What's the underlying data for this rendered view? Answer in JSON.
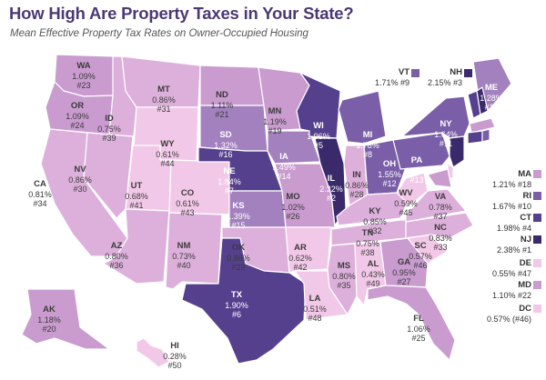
{
  "title": "How High Are Property Taxes in Your State?",
  "subtitle": "Mean Effective Property Tax Rates on Owner-Occupied Housing",
  "legend_colors": {
    "c1": "#f2c8e8",
    "c2": "#ddb0dc",
    "c3": "#c99bcf",
    "c4": "#a381bf",
    "c5": "#7a5ea8",
    "c6": "#55408d",
    "c7": "#3a2a6b"
  },
  "states": [
    {
      "id": "WA",
      "abbr": "WA",
      "rate": "1.09%",
      "rank": "#23",
      "shade": "c3"
    },
    {
      "id": "OR",
      "abbr": "OR",
      "rate": "1.09%",
      "rank": "#24",
      "shade": "c3"
    },
    {
      "id": "CA",
      "abbr": "CA",
      "rate": "0.81%",
      "rank": "#34",
      "shade": "c2"
    },
    {
      "id": "ID",
      "abbr": "ID",
      "rate": "0.75%",
      "rank": "#39",
      "shade": "c2"
    },
    {
      "id": "NV",
      "abbr": "NV",
      "rate": "0.86%",
      "rank": "#30",
      "shade": "c2"
    },
    {
      "id": "MT",
      "abbr": "MT",
      "rate": "0.86%",
      "rank": "#31",
      "shade": "c2"
    },
    {
      "id": "WY",
      "abbr": "WY",
      "rate": "0.61%",
      "rank": "#44",
      "shade": "c1"
    },
    {
      "id": "UT",
      "abbr": "UT",
      "rate": "0.68%",
      "rank": "#41",
      "shade": "c1"
    },
    {
      "id": "AZ",
      "abbr": "AZ",
      "rate": "0.80%",
      "rank": "#36",
      "shade": "c2"
    },
    {
      "id": "CO",
      "abbr": "CO",
      "rate": "0.61%",
      "rank": "#43",
      "shade": "c1"
    },
    {
      "id": "NM",
      "abbr": "NM",
      "rate": "0.73%",
      "rank": "#40",
      "shade": "c2"
    },
    {
      "id": "ND",
      "abbr": "ND",
      "rate": "1.11%",
      "rank": "#21",
      "shade": "c3"
    },
    {
      "id": "SD",
      "abbr": "SD",
      "rate": "1.32%",
      "rank": "#16",
      "shade": "c4"
    },
    {
      "id": "NE",
      "abbr": "NE",
      "rate": "1.84%",
      "rank": "#7",
      "shade": "c6"
    },
    {
      "id": "KS",
      "abbr": "KS",
      "rate": "1.39%",
      "rank": "#15",
      "shade": "c4"
    },
    {
      "id": "OK",
      "abbr": "OK",
      "rate": "0.86%",
      "rank": "#29",
      "shade": "c2"
    },
    {
      "id": "TX",
      "abbr": "TX",
      "rate": "1.90%",
      "rank": "#6",
      "shade": "c6"
    },
    {
      "id": "MN",
      "abbr": "MN",
      "rate": "1.19%",
      "rank": "#19",
      "shade": "c3"
    },
    {
      "id": "IA",
      "abbr": "IA",
      "rate": "1.49%",
      "rank": "#14",
      "shade": "c4"
    },
    {
      "id": "MO",
      "abbr": "MO",
      "rate": "1.02%",
      "rank": "#26",
      "shade": "c3"
    },
    {
      "id": "AR",
      "abbr": "AR",
      "rate": "0.62%",
      "rank": "#42",
      "shade": "c1"
    },
    {
      "id": "LA",
      "abbr": "LA",
      "rate": "0.51%",
      "rank": "#48",
      "shade": "c1"
    },
    {
      "id": "WI",
      "abbr": "WI",
      "rate": "1.96%",
      "rank": "#5",
      "shade": "c6"
    },
    {
      "id": "IL",
      "abbr": "IL",
      "rate": "2.32%",
      "rank": "#2",
      "shade": "c7"
    },
    {
      "id": "MI",
      "abbr": "MI",
      "rate": "1.78%",
      "rank": "#8",
      "shade": "c5"
    },
    {
      "id": "IN",
      "abbr": "IN",
      "rate": "0.86%",
      "rank": "#28",
      "shade": "c2"
    },
    {
      "id": "OH",
      "abbr": "OH",
      "rate": "1.55%",
      "rank": "#12",
      "shade": "c5"
    },
    {
      "id": "KY",
      "abbr": "KY",
      "rate": "0.85%",
      "rank": "#32",
      "shade": "c2"
    },
    {
      "id": "TN",
      "abbr": "TN",
      "rate": "0.75%",
      "rank": "#38",
      "shade": "c2"
    },
    {
      "id": "MS",
      "abbr": "MS",
      "rate": "0.80%",
      "rank": "#35",
      "shade": "c2"
    },
    {
      "id": "AL",
      "abbr": "AL",
      "rate": "0.43%",
      "rank": "#49",
      "shade": "c1"
    },
    {
      "id": "GA",
      "abbr": "GA",
      "rate": "0.95%",
      "rank": "#27",
      "shade": "c3"
    },
    {
      "id": "FL",
      "abbr": "FL",
      "rate": "1.06%",
      "rank": "#25",
      "shade": "c3"
    },
    {
      "id": "SC",
      "abbr": "SC",
      "rate": "0.57%",
      "rank": "#46",
      "shade": "c1"
    },
    {
      "id": "NC",
      "abbr": "NC",
      "rate": "0.83%",
      "rank": "#33",
      "shade": "c2"
    },
    {
      "id": "VA",
      "abbr": "VA",
      "rate": "0.78%",
      "rank": "#37",
      "shade": "c2"
    },
    {
      "id": "WV",
      "abbr": "WV",
      "rate": "0.59%",
      "rank": "#45",
      "shade": "c1"
    },
    {
      "id": "PA",
      "abbr": "PA",
      "rate": "1.54%",
      "rank": "#13",
      "shade": "c5"
    },
    {
      "id": "NY",
      "abbr": "NY",
      "rate": "1.64%",
      "rank": "#11",
      "shade": "c5"
    },
    {
      "id": "ME",
      "abbr": "ME",
      "rate": "1.28%",
      "rank": "#17",
      "shade": "c4"
    },
    {
      "id": "AK",
      "abbr": "AK",
      "rate": "1.18%",
      "rank": "#20",
      "shade": "c3"
    },
    {
      "id": "HI",
      "abbr": "HI",
      "rate": "0.28%",
      "rank": "#50",
      "shade": "c1"
    }
  ],
  "northeast_callouts": [
    {
      "abbr": "VT",
      "text": "1.71% #9",
      "shade": "c5"
    },
    {
      "abbr": "NH",
      "text": "2.15% #3",
      "shade": "c7"
    }
  ],
  "side_callouts": [
    {
      "abbr": "MA",
      "text": "1.21% #18",
      "shade": "c3"
    },
    {
      "abbr": "RI",
      "text": "1.67% #10",
      "shade": "c5"
    },
    {
      "abbr": "CT",
      "text": "1.98% #4",
      "shade": "c6"
    },
    {
      "abbr": "NJ",
      "text": "2.38% #1",
      "shade": "c7"
    },
    {
      "abbr": "DE",
      "text": "0.55% #47",
      "shade": "c1"
    },
    {
      "abbr": "MD",
      "text": "1.10% #22",
      "shade": "c3"
    },
    {
      "abbr": "DC",
      "text": "0.57% (#46)",
      "shade": "c1"
    }
  ]
}
